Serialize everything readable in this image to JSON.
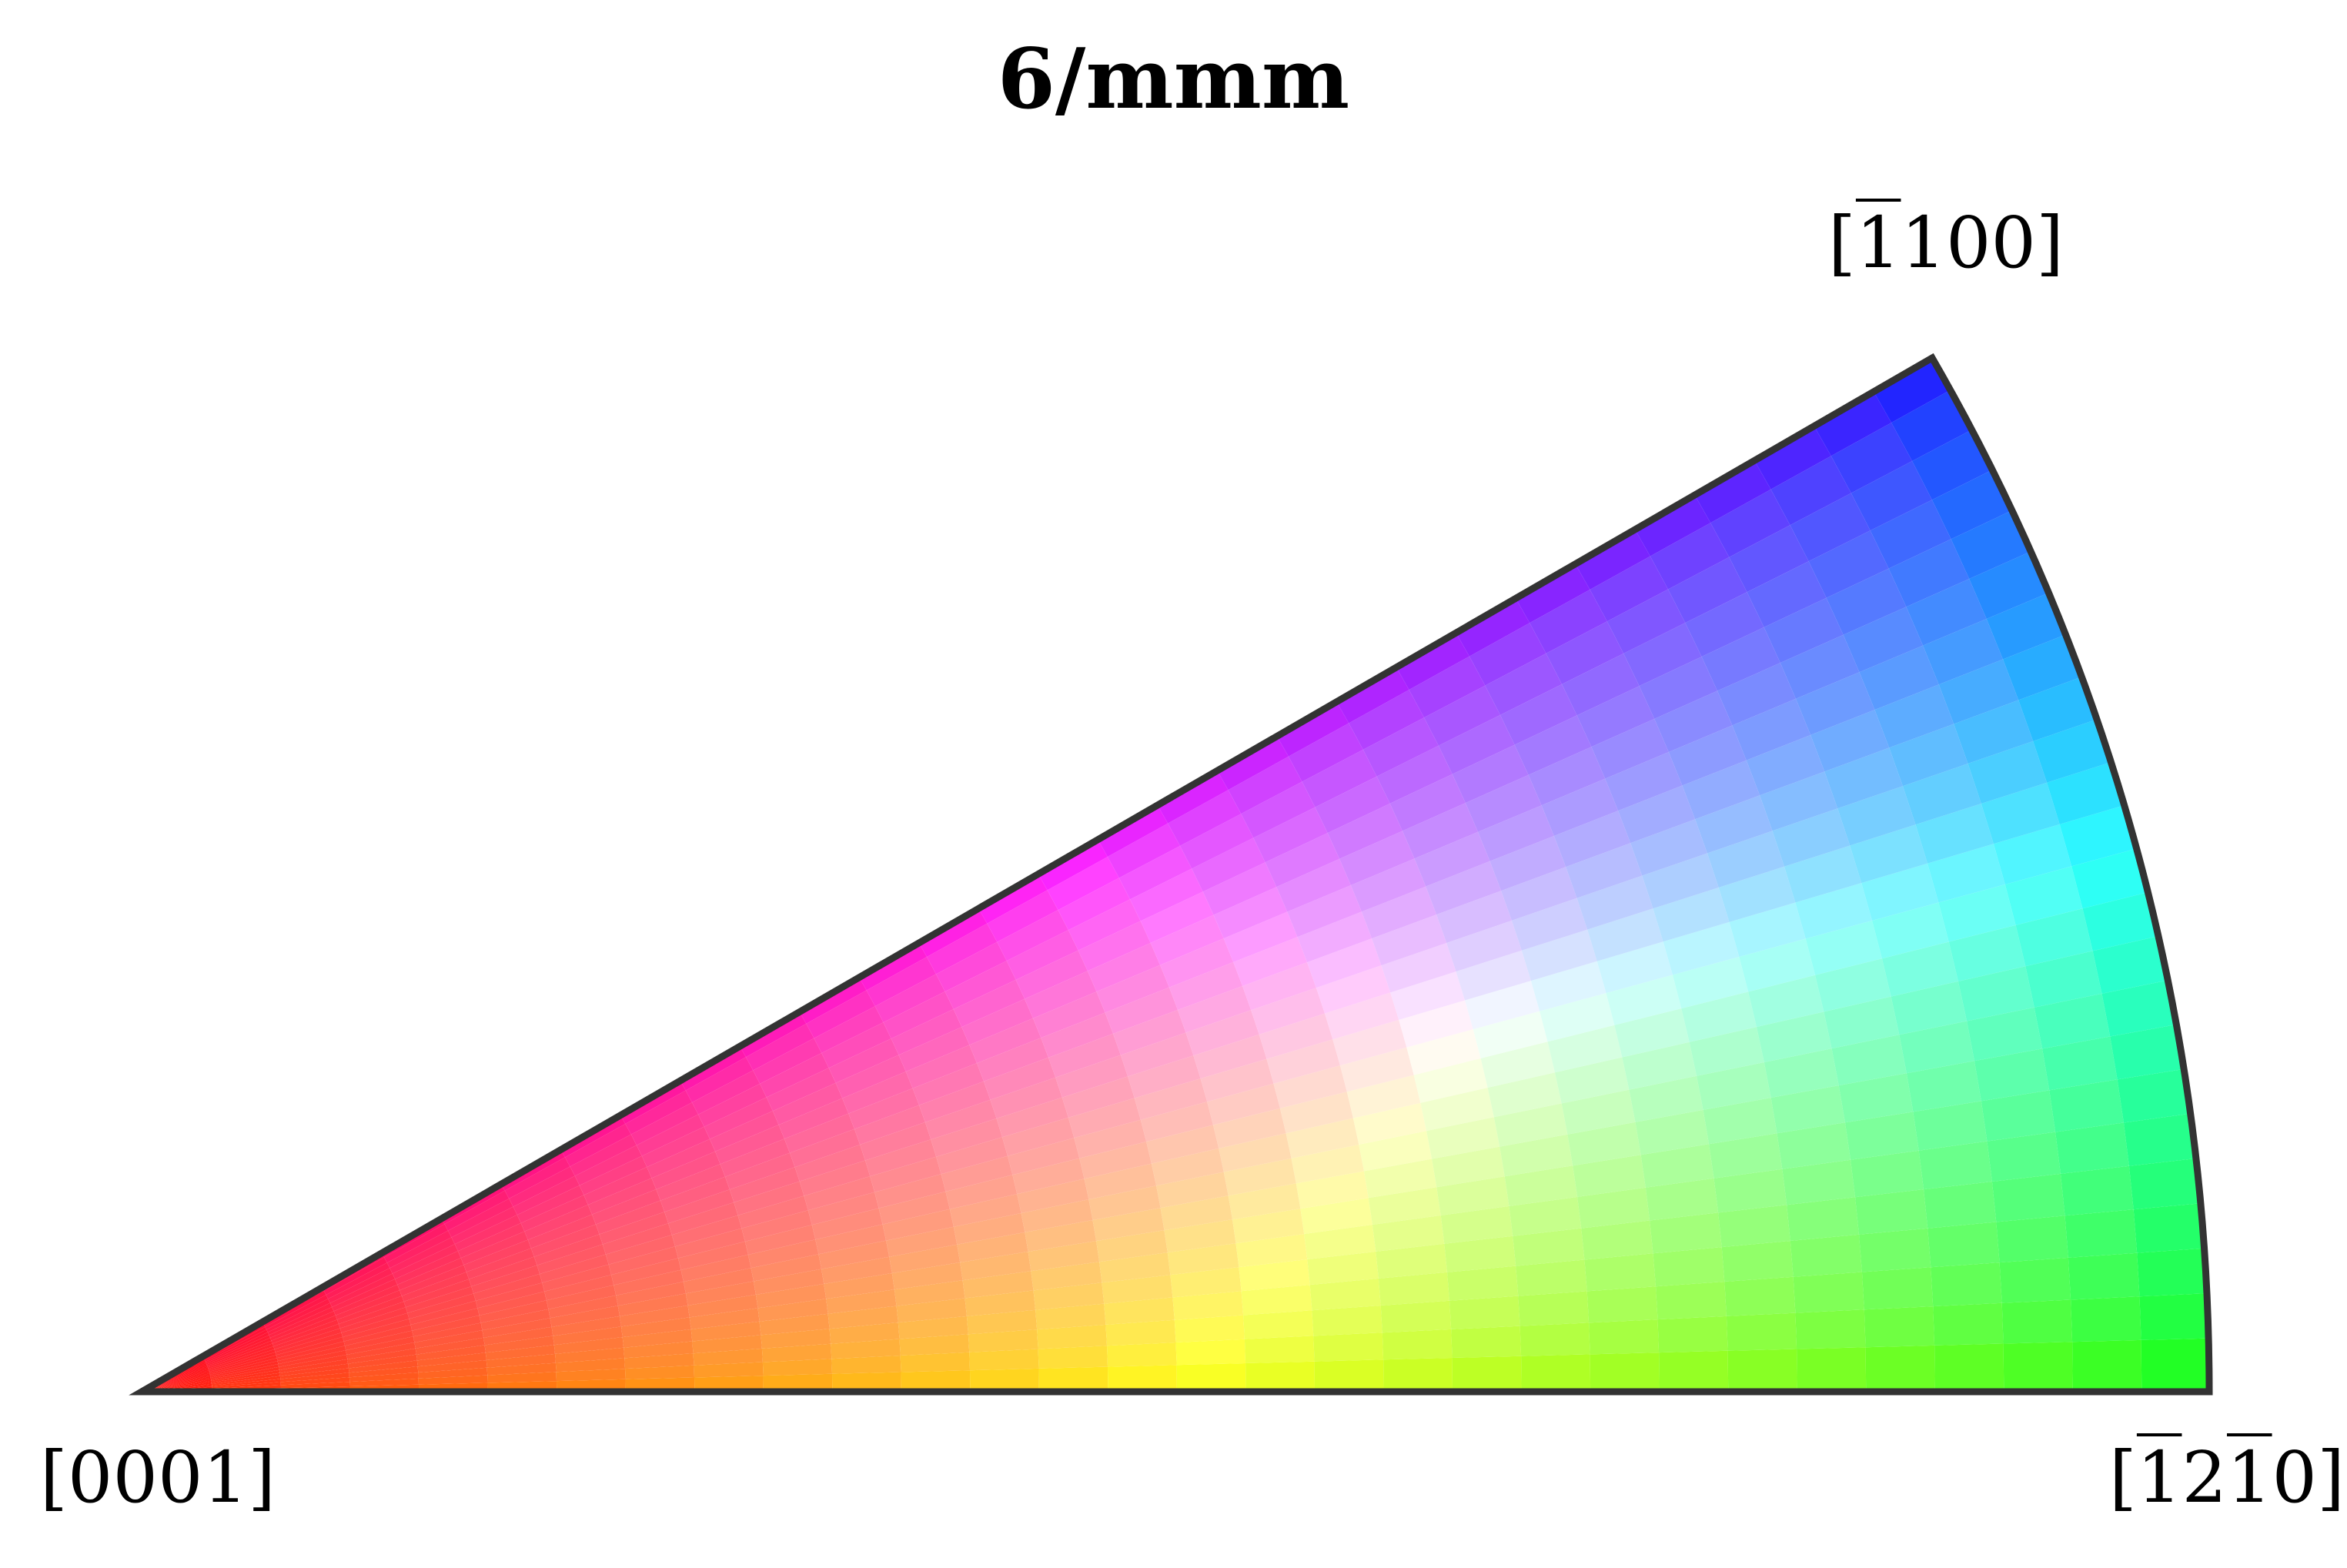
{
  "title": "6/mmm",
  "corners": {
    "bottom_left": {
      "open": "[",
      "digits": [
        "0",
        "0",
        "0",
        "1"
      ],
      "overline": [
        false,
        false,
        false,
        false
      ],
      "close": "]"
    },
    "top": {
      "open": "[",
      "digits": [
        "1",
        "1",
        "0",
        "0"
      ],
      "overline": [
        true,
        false,
        false,
        false
      ],
      "close": "]"
    },
    "bottom_right": {
      "open": "[",
      "digits": [
        "1",
        "2",
        "1",
        "0"
      ],
      "overline": [
        true,
        false,
        true,
        false
      ],
      "close": "]"
    }
  },
  "colors": {
    "bottom_left": "#ff0000",
    "bottom_right": "#00ff00",
    "top": "#0000ff",
    "outline": "#333333"
  }
}
